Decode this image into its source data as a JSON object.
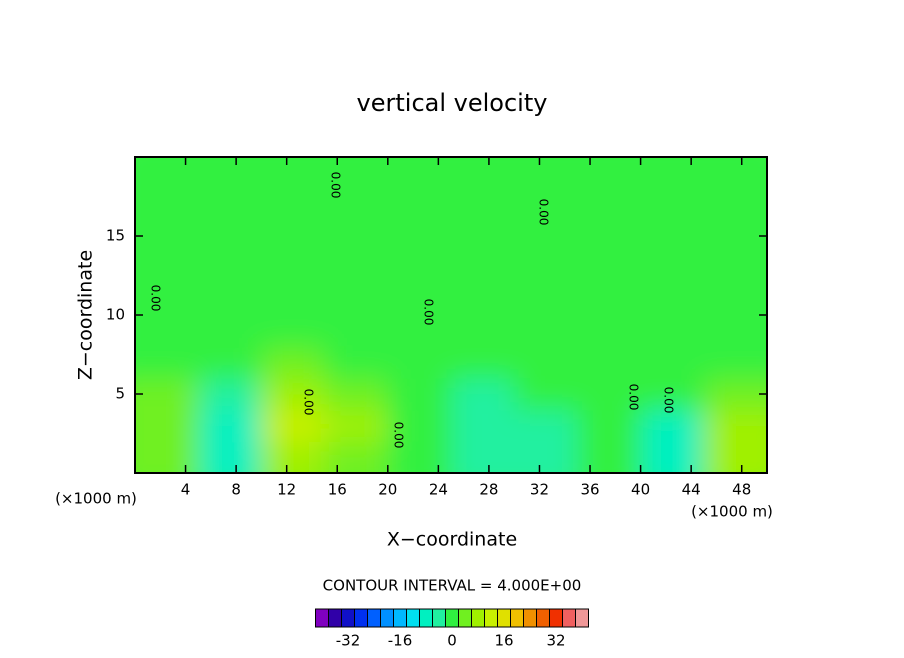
{
  "chart_data": {
    "type": "contour",
    "title": "vertical velocity",
    "xlabel": "X−coordinate",
    "ylabel": "Z−coordinate",
    "x_unit": "(×1000 m)",
    "y_unit": "(×1000 m)",
    "contour_interval_text": "CONTOUR INTERVAL = 4.000E+00",
    "contour_label": "0.00",
    "xlim": [
      0,
      50
    ],
    "ylim": [
      0,
      20
    ],
    "xticks": [
      4,
      8,
      12,
      16,
      20,
      24,
      28,
      32,
      36,
      40,
      44,
      48
    ],
    "yticks": [
      5,
      10,
      15
    ],
    "x": [
      2.5,
      7.5,
      12.5,
      17.5,
      22.5,
      27.5,
      32.5,
      37.5,
      42.5,
      47.5
    ],
    "y": [
      1,
      3,
      5,
      7,
      9,
      11,
      13,
      15,
      17,
      19
    ],
    "z": [
      [
        4,
        -8,
        8,
        4,
        0,
        -4,
        -4,
        0,
        -8,
        8
      ],
      [
        4,
        -8,
        12,
        8,
        0,
        -4,
        -4,
        0,
        -8,
        8
      ],
      [
        4,
        -4,
        8,
        4,
        0,
        -4,
        0,
        0,
        0,
        4
      ],
      [
        0,
        0,
        4,
        0,
        0,
        0,
        0,
        0,
        0,
        0
      ],
      [
        0,
        0,
        0,
        0,
        0,
        0,
        0,
        0,
        0,
        0
      ],
      [
        0,
        0,
        0,
        0,
        0,
        0,
        0,
        0,
        0,
        0
      ],
      [
        0,
        0,
        0,
        0,
        0,
        0,
        0,
        0,
        0,
        0
      ],
      [
        0,
        0,
        0,
        0,
        0,
        0,
        0,
        0,
        0,
        0
      ],
      [
        0,
        0,
        0,
        0,
        0,
        0,
        0,
        0,
        0,
        0
      ],
      [
        0,
        0,
        0,
        0,
        0,
        0,
        0,
        0,
        0,
        0
      ]
    ],
    "levels": [
      -40,
      -36,
      -32,
      -28,
      -24,
      -20,
      -16,
      -12,
      -8,
      -4,
      0,
      4,
      8,
      12,
      16,
      20,
      24,
      28,
      32,
      36,
      40
    ],
    "colors": [
      "#8000c0",
      "#3000a8",
      "#1010c8",
      "#0030f0",
      "#0060ff",
      "#0090ff",
      "#00b8ff",
      "#00e0f0",
      "#00f0c0",
      "#20f0a0",
      "#30f040",
      "#70f020",
      "#a0f000",
      "#c8f000",
      "#e0e000",
      "#f0c000",
      "#f09000",
      "#f06000",
      "#f03000",
      "#f06060",
      "#f09898"
    ],
    "colorbar_ticks": [
      -32,
      -16,
      0,
      16,
      32
    ]
  }
}
